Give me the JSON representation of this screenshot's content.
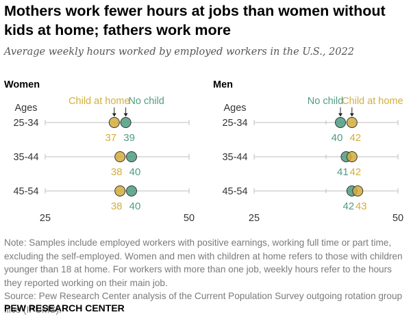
{
  "title": "Mothers work fewer hours at jobs than women without kids at home; fathers work more",
  "subtitle": "Average weekly hours worked by employed workers in the U.S., 2022",
  "note": "Note: Samples include employed workers with positive earnings, working full time or part time, excluding the self-employed. Women and men with children at home refers to those with children younger than 18 at home. For workers with more than one job, weekly hours refer to the hours they reported working on their main job.",
  "source": "Source: Pew Research Center analysis of the Current Population Survey outgoing rotation group files (IPUMS).",
  "organization": "PEW RESEARCH CENTER",
  "colors": {
    "child_at_home": "#d4ad3c",
    "no_child": "#4e9c83",
    "axis": "#bdbdbd"
  },
  "chart_data": {
    "type": "dot",
    "xlim": [
      25,
      50
    ],
    "x_ticks": [
      25,
      50
    ],
    "row_header": "Ages",
    "categories": [
      "25-34",
      "35-44",
      "45-54"
    ],
    "panels": [
      {
        "title": "Women",
        "series": [
          {
            "name": "Child at home",
            "values": [
              37,
              38,
              38
            ]
          },
          {
            "name": "No child",
            "values": [
              39,
              40,
              40
            ]
          }
        ]
      },
      {
        "title": "Men",
        "series": [
          {
            "name": "No child",
            "values": [
              40,
              41,
              42
            ]
          },
          {
            "name": "Child at home",
            "values": [
              42,
              42,
              43
            ]
          }
        ]
      }
    ]
  }
}
